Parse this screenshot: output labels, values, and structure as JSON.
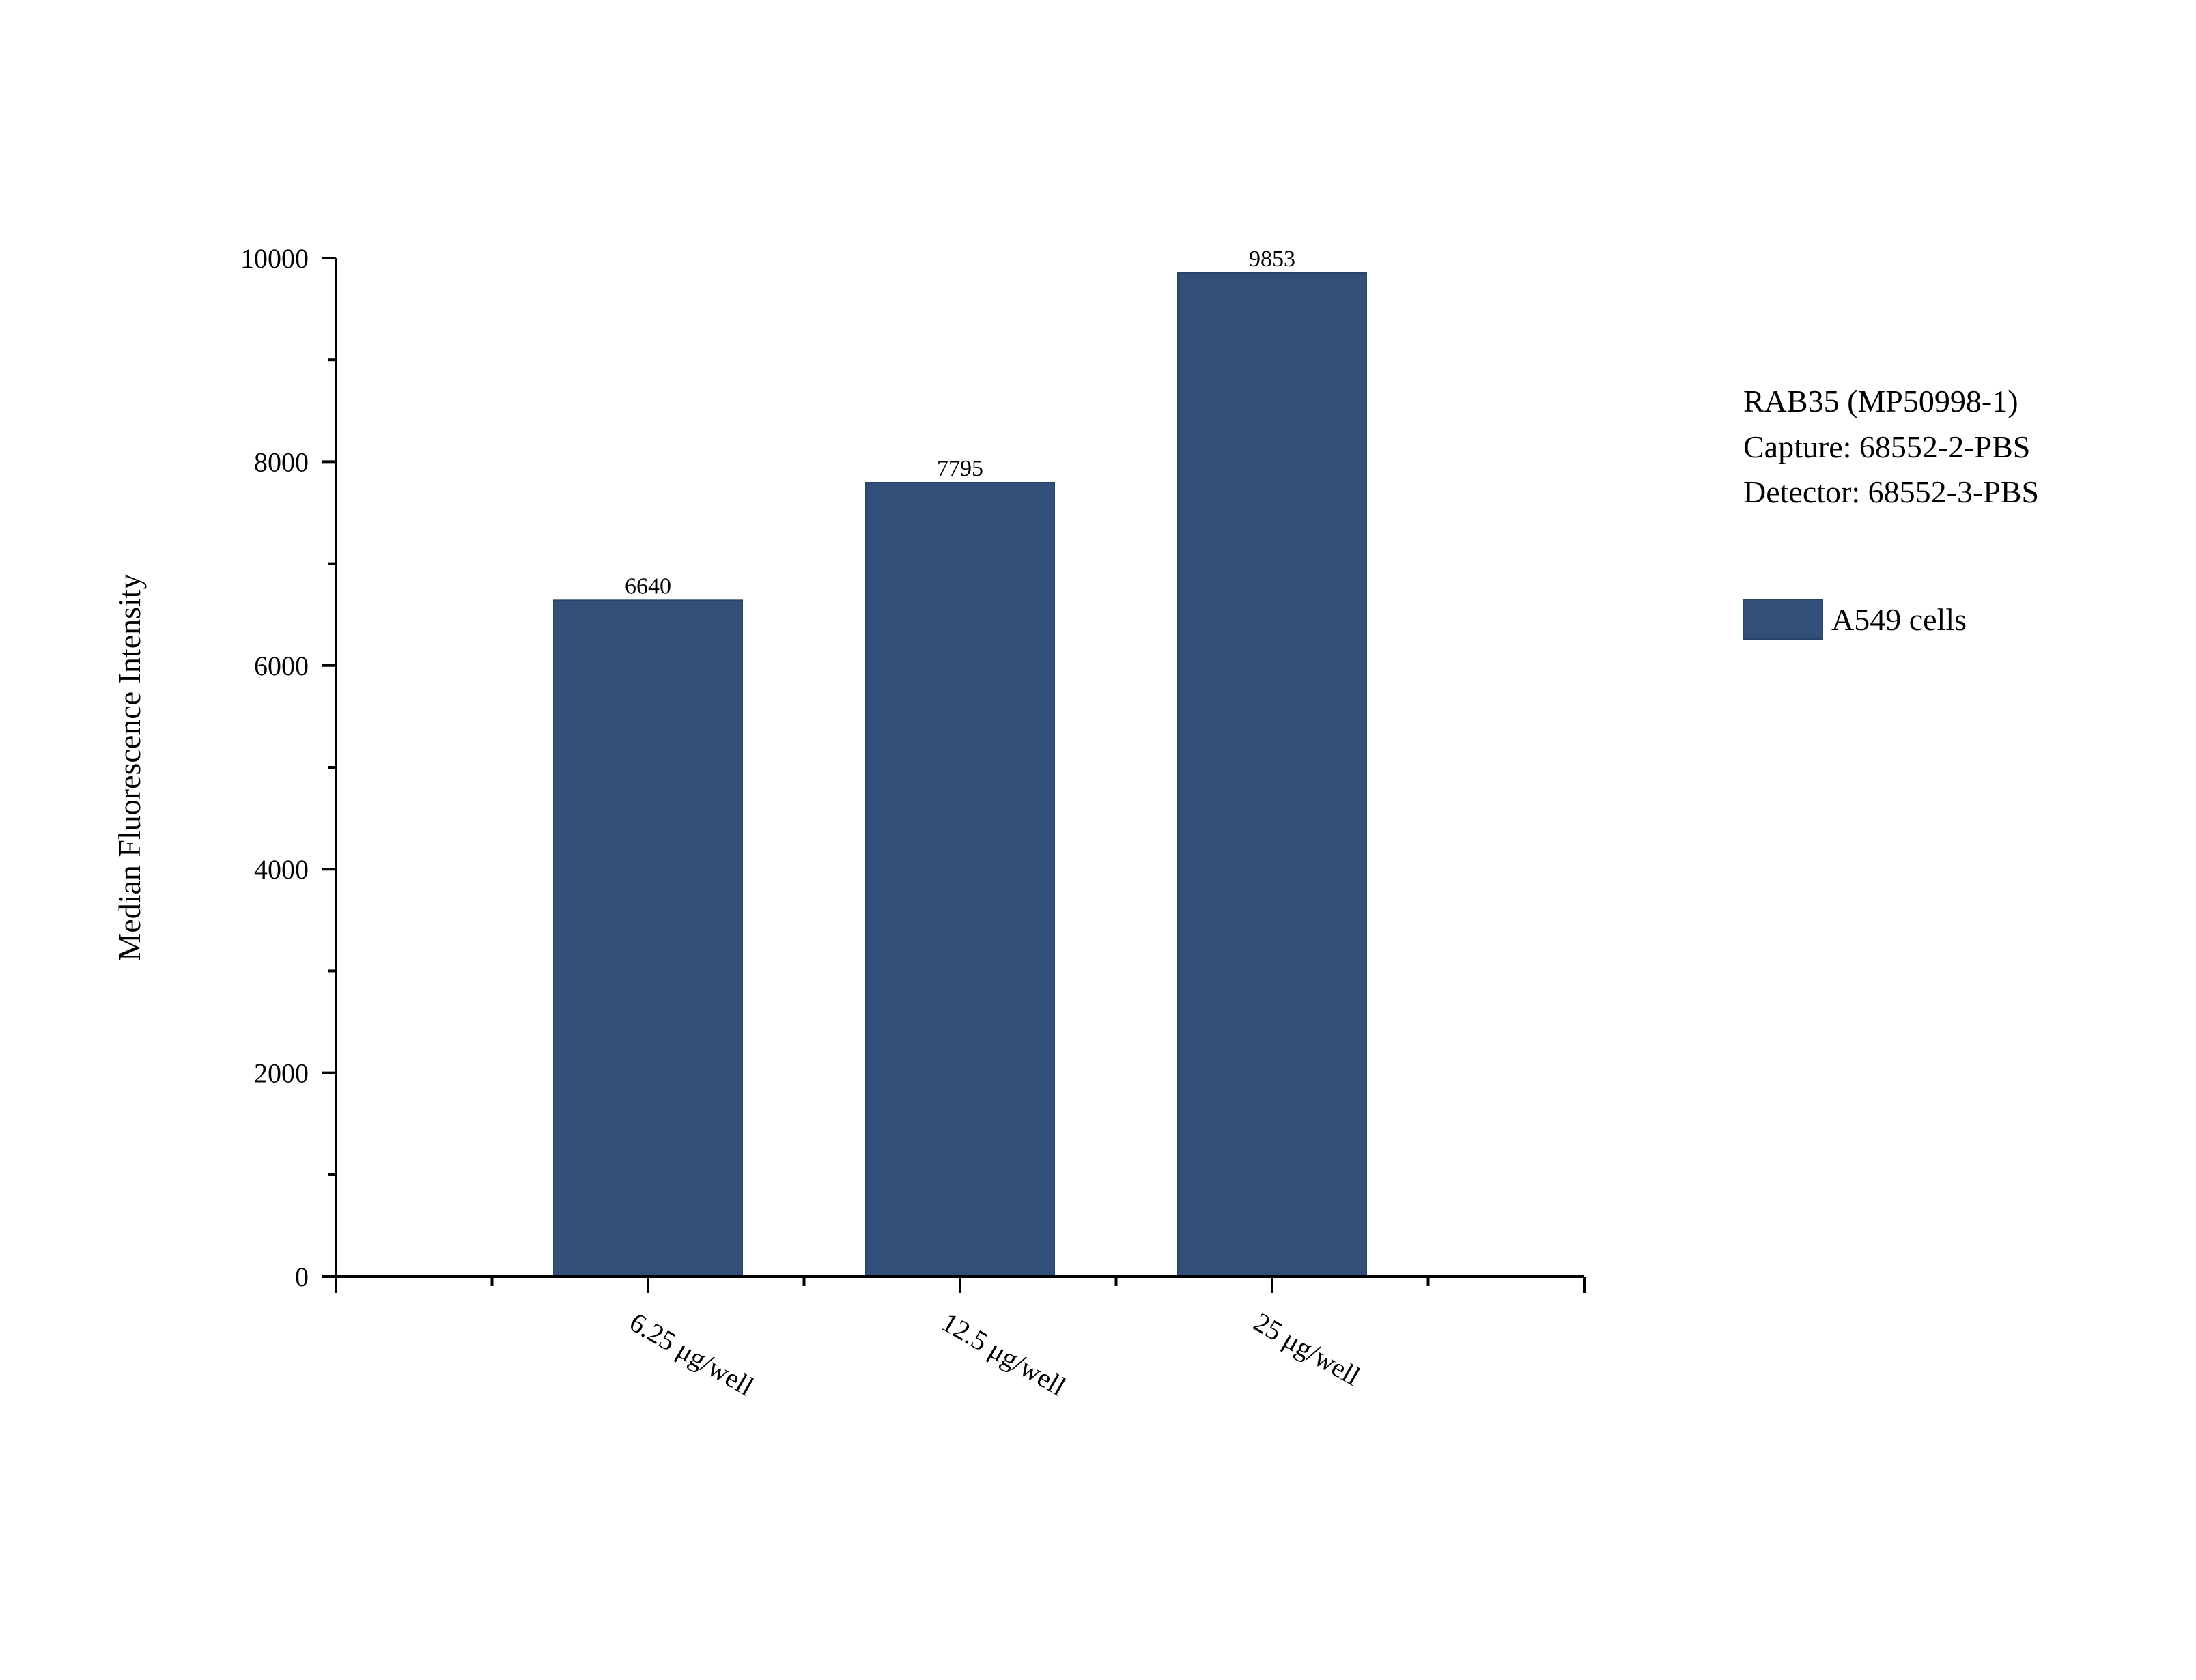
{
  "chart_data": {
    "type": "bar",
    "categories": [
      "6.25 μg/well",
      "12.5 μg/well",
      "25 μg/well"
    ],
    "series": [
      {
        "name": "A549 cells",
        "values": [
          6640,
          7795,
          9853
        ],
        "color": "#314f78"
      }
    ],
    "data_labels": [
      "6640",
      "7795",
      "9853"
    ],
    "title": "",
    "xlabel": "",
    "ylabel": "Median Fluorescence Intensity",
    "ylim": [
      0,
      10000
    ],
    "yticks": [
      0,
      2000,
      4000,
      6000,
      8000,
      10000
    ],
    "ytick_labels": [
      "0",
      "2000",
      "4000",
      "6000",
      "8000",
      "10000"
    ],
    "grid": false,
    "legend_position": "right",
    "annotation_lines": [
      "RAB35 (MP50998-1)",
      "Capture: 68552-2-PBS",
      "Detector: 68552-3-PBS"
    ]
  }
}
